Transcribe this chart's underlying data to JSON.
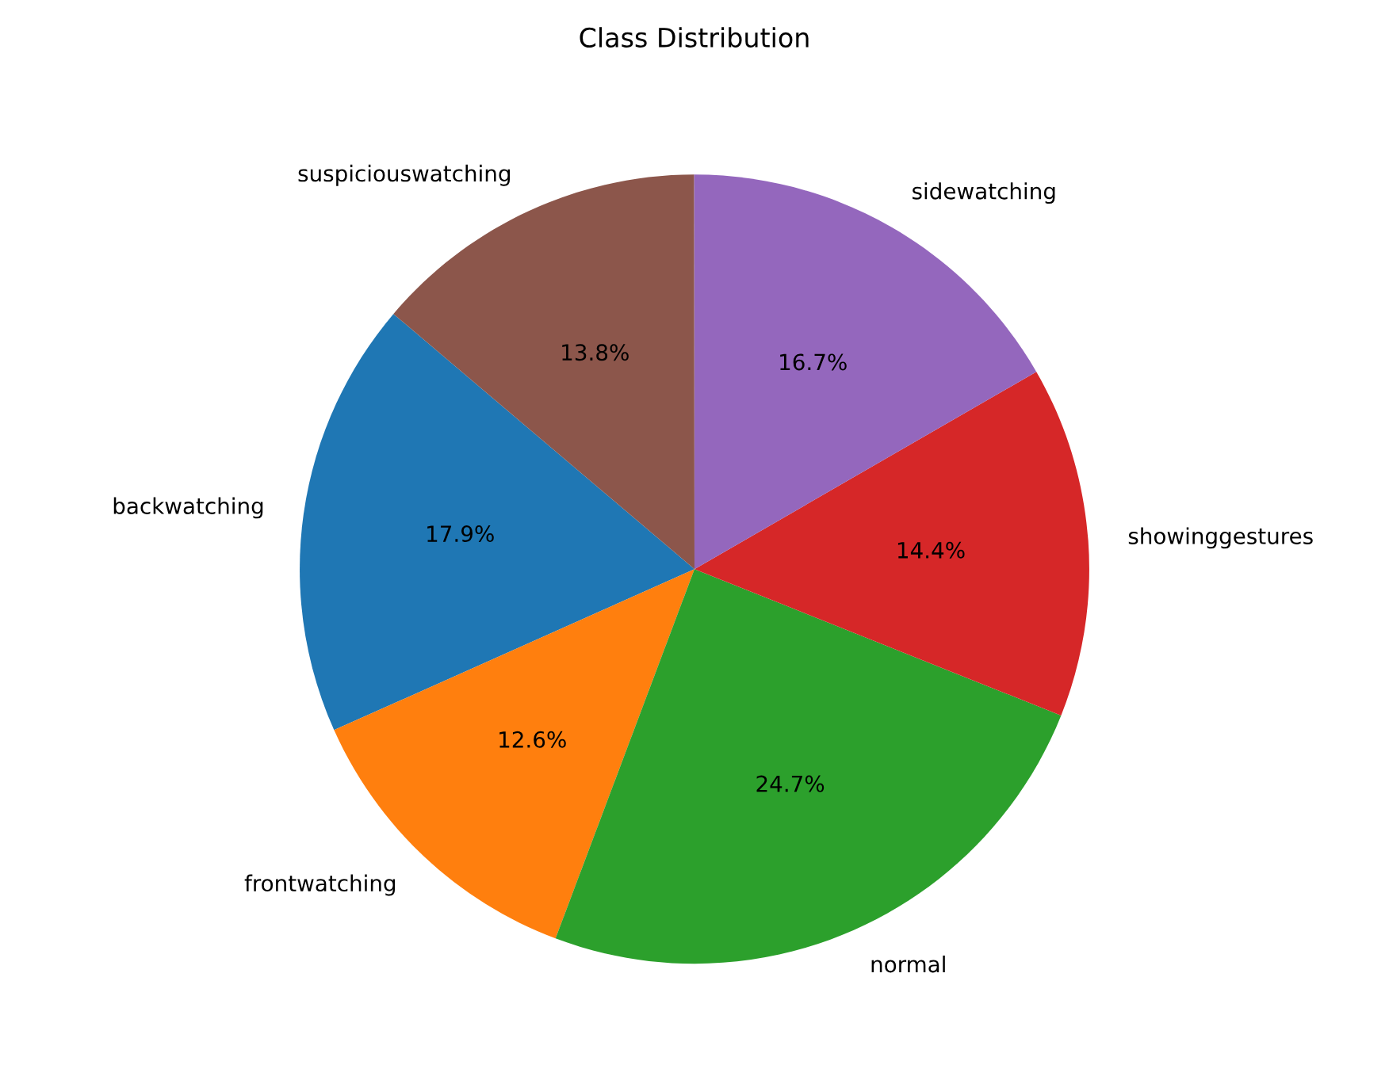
{
  "chart_data": {
    "type": "pie",
    "title": "Class Distribution",
    "categories": [
      "backwatching",
      "frontwatching",
      "normal",
      "showinggestures",
      "sidewatching",
      "suspiciouswatching"
    ],
    "values": [
      17.9,
      12.6,
      24.7,
      14.4,
      16.7,
      13.8
    ],
    "value_labels": [
      "17.9%",
      "12.6%",
      "24.7%",
      "14.4%",
      "16.7%",
      "13.8%"
    ],
    "colors": [
      "#1f77b4",
      "#ff7f0e",
      "#2ca02c",
      "#d62728",
      "#9467bd",
      "#8c564b"
    ]
  }
}
